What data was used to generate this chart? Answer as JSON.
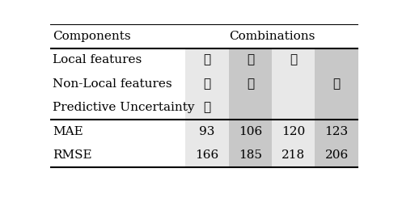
{
  "title": "Components",
  "combinations_label": "Combinations",
  "row_labels": [
    "Local features",
    "Non-Local features",
    "Predictive Uncertainty",
    "MAE",
    "RMSE"
  ],
  "col_data": [
    [
      "✓",
      "✓",
      "✓",
      "93",
      "166"
    ],
    [
      "✓",
      "✓",
      "",
      "106",
      "185"
    ],
    [
      "✓",
      "",
      "",
      "120",
      "218"
    ],
    [
      "",
      "✓",
      "",
      "123",
      "206"
    ]
  ],
  "col_bg_colors": [
    "#e8e8e8",
    "#c8c8c8",
    "#e8e8e8",
    "#c8c8c8"
  ],
  "fig_bg": "#ffffff",
  "font_size": 11,
  "header_font_size": 11
}
